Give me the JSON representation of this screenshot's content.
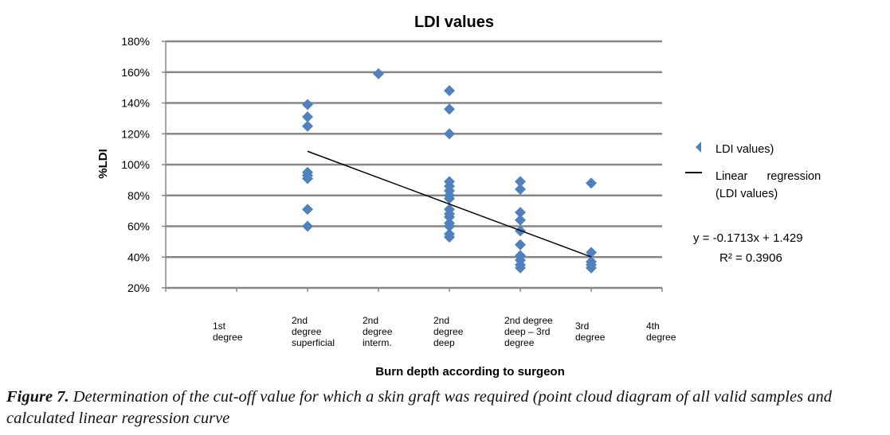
{
  "chart_data": {
    "type": "scatter",
    "title": "LDI values",
    "xlabel": "Burn depth according to surgeon",
    "ylabel": "%LDI",
    "xlim": [
      0,
      7
    ],
    "ylim": [
      20,
      180
    ],
    "y_ticks": [
      "20%",
      "40%",
      "60%",
      "80%",
      "100%",
      "120%",
      "140%",
      "160%",
      "180%"
    ],
    "y_tick_values": [
      20,
      40,
      60,
      80,
      100,
      120,
      140,
      160,
      180
    ],
    "grid": "horizontal",
    "categories": [
      {
        "x": 1,
        "label": [
          "1st",
          "degree"
        ]
      },
      {
        "x": 2,
        "label": [
          "2nd",
          "degree",
          "superficial"
        ]
      },
      {
        "x": 3,
        "label": [
          "2nd",
          "degree",
          "interm."
        ]
      },
      {
        "x": 4,
        "label": [
          "2nd",
          "degree",
          "deep"
        ]
      },
      {
        "x": 5,
        "label": [
          "2nd degree",
          "deep – 3rd",
          "degree"
        ]
      },
      {
        "x": 6,
        "label": [
          "3rd",
          "degree"
        ]
      },
      {
        "x": 7,
        "label": [
          "4th",
          "degree"
        ]
      }
    ],
    "series": [
      {
        "name": "LDI values)",
        "type": "scatter",
        "color": "#4f81bd",
        "points": [
          [
            2,
            139
          ],
          [
            2,
            131
          ],
          [
            2,
            125
          ],
          [
            2,
            95
          ],
          [
            2,
            93
          ],
          [
            2,
            91
          ],
          [
            2,
            71
          ],
          [
            2,
            60
          ],
          [
            3,
            159
          ],
          [
            4,
            148
          ],
          [
            4,
            136
          ],
          [
            4,
            120
          ],
          [
            4,
            89
          ],
          [
            4,
            86
          ],
          [
            4,
            83
          ],
          [
            4,
            80
          ],
          [
            4,
            78
          ],
          [
            4,
            71
          ],
          [
            4,
            68
          ],
          [
            4,
            66
          ],
          [
            4,
            62
          ],
          [
            4,
            60
          ],
          [
            4,
            55
          ],
          [
            4,
            53
          ],
          [
            5,
            89
          ],
          [
            5,
            84
          ],
          [
            5,
            69
          ],
          [
            5,
            64
          ],
          [
            5,
            57
          ],
          [
            5,
            48
          ],
          [
            5,
            41
          ],
          [
            5,
            38
          ],
          [
            5,
            35
          ],
          [
            5,
            33
          ],
          [
            6,
            88
          ],
          [
            6,
            43
          ],
          [
            6,
            37
          ],
          [
            6,
            35
          ],
          [
            6,
            33
          ]
        ]
      },
      {
        "name": "Linear regression (LDI values)",
        "name_lines": [
          "Linear      regression",
          "(LDI values)"
        ],
        "type": "line",
        "color": "#000000",
        "slope": -0.1713,
        "intercept": 1.429,
        "x_range": [
          2,
          6
        ]
      }
    ],
    "legend": "right",
    "annotations": [
      "y = -0.1713x + 1.429",
      "R² = 0.3906"
    ]
  },
  "caption": {
    "label": "Figure 7.",
    "text": " Determination of the cut-off value for which a skin graft was required (point cloud diagram of all valid samples and calculated linear regression curve"
  }
}
